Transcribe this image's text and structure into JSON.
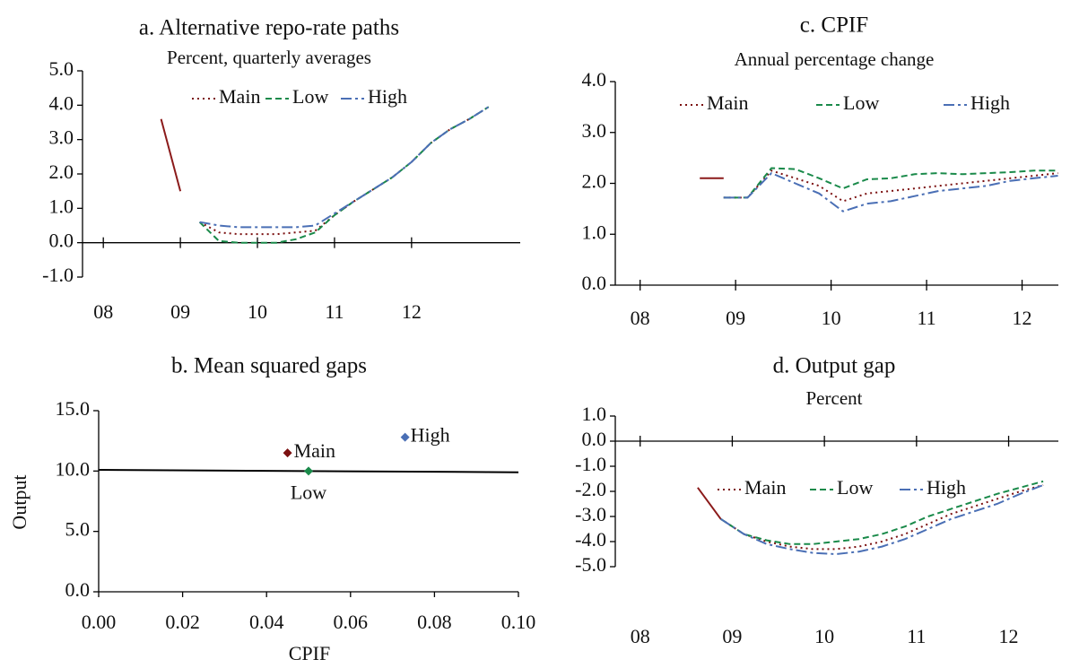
{
  "chart_data": [
    {
      "type": "line",
      "title": "a. Alternative repo-rate paths",
      "subtitle": "Percent, quarterly averages",
      "x": [
        8.75,
        9,
        9.25,
        9.5,
        9.75,
        10,
        10.25,
        10.5,
        10.75,
        11,
        11.25,
        11.5,
        11.75,
        12,
        12.25,
        12.5,
        12.75,
        13
      ],
      "xlim": [
        7.73,
        13.41
      ],
      "xticks": [
        {
          "value": 8,
          "label": "08"
        },
        {
          "value": 9,
          "label": "09"
        },
        {
          "value": 10,
          "label": "10"
        },
        {
          "value": 11,
          "label": "11"
        },
        {
          "value": 12,
          "label": "12"
        }
      ],
      "ylim": [
        -1,
        5
      ],
      "yticks": [
        {
          "value": -1,
          "label": "-1.0"
        },
        {
          "value": 0,
          "label": "0.0"
        },
        {
          "value": 1,
          "label": "1.0"
        },
        {
          "value": 2,
          "label": "2.0"
        },
        {
          "value": 3,
          "label": "3.0"
        },
        {
          "value": 4,
          "label": "4.0"
        },
        {
          "value": 5,
          "label": "5.0"
        }
      ],
      "series": [
        {
          "color": "#8b1a1a",
          "style": "solid",
          "values": [
            3.6,
            1.5,
            null,
            null,
            null,
            null,
            null,
            null,
            null,
            null,
            null,
            null,
            null,
            null,
            null,
            null,
            null,
            null
          ]
        },
        {
          "name": "Main",
          "color": "#7b1010",
          "style": "dotted",
          "values": [
            null,
            null,
            0.6,
            0.3,
            0.25,
            0.25,
            0.25,
            0.3,
            0.35,
            0.8,
            1.2,
            1.55,
            1.9,
            2.35,
            2.9,
            3.3,
            3.6,
            3.95
          ]
        },
        {
          "name": "Low",
          "color": "#1a8a4a",
          "style": "dashed",
          "values": [
            null,
            null,
            0.6,
            0.05,
            0,
            0,
            0,
            0.1,
            0.3,
            0.8,
            1.2,
            1.55,
            1.9,
            2.35,
            2.9,
            3.3,
            3.6,
            3.95
          ]
        },
        {
          "name": "High",
          "color": "#4a6fb5",
          "style": "dashdot",
          "values": [
            null,
            null,
            0.6,
            0.5,
            0.45,
            0.45,
            0.45,
            0.45,
            0.5,
            0.85,
            1.2,
            1.55,
            1.9,
            2.35,
            2.9,
            3.3,
            3.6,
            3.95
          ]
        }
      ]
    },
    {
      "type": "scatter",
      "title": "b. Mean squared gaps",
      "xlabel": "CPIF",
      "ylabel": "Output",
      "xlim": [
        0,
        0.1
      ],
      "xticks": [
        {
          "value": 0,
          "label": "0.00"
        },
        {
          "value": 0.02,
          "label": "0.02"
        },
        {
          "value": 0.04,
          "label": "0.04"
        },
        {
          "value": 0.06,
          "label": "0.06"
        },
        {
          "value": 0.08,
          "label": "0.08"
        },
        {
          "value": 0.1,
          "label": "0.10"
        }
      ],
      "ylim": [
        0,
        15
      ],
      "yticks": [
        {
          "value": 0,
          "label": "0.0"
        },
        {
          "value": 5,
          "label": "5.0"
        },
        {
          "value": 10,
          "label": "10.0"
        },
        {
          "value": 15,
          "label": "15.0"
        }
      ],
      "points": [
        {
          "name": "Main",
          "x": 0.045,
          "y": 11.5,
          "color": "#7b1010"
        },
        {
          "name": "Low",
          "x": 0.05,
          "y": 10.0,
          "color": "#1a8a4a"
        },
        {
          "name": "High",
          "x": 0.073,
          "y": 12.8,
          "color": "#4a6fb5"
        }
      ],
      "line": {
        "x": [
          0,
          0.1
        ],
        "values": [
          10.1,
          9.9
        ],
        "color": "#000000"
      }
    },
    {
      "type": "line",
      "title": "c. CPIF",
      "subtitle": "Annual percentage change",
      "x": [
        8.625,
        8.875,
        9.125,
        9.375,
        9.625,
        9.875,
        10.125,
        10.375,
        10.625,
        10.875,
        11.125,
        11.375,
        11.625,
        11.875,
        12.125,
        12.375
      ],
      "xlim": [
        7.74,
        12.38
      ],
      "xticks": [
        {
          "value": 8,
          "label": "08"
        },
        {
          "value": 9,
          "label": "09"
        },
        {
          "value": 10,
          "label": "10"
        },
        {
          "value": 11,
          "label": "11"
        },
        {
          "value": 12,
          "label": "12"
        }
      ],
      "ylim": [
        0,
        4
      ],
      "yticks": [
        {
          "value": 0,
          "label": "0.0"
        },
        {
          "value": 1,
          "label": "1.0"
        },
        {
          "value": 2,
          "label": "2.0"
        },
        {
          "value": 3,
          "label": "3.0"
        },
        {
          "value": 4,
          "label": "4.0"
        }
      ],
      "series": [
        {
          "color": "#8b1a1a",
          "style": "solid",
          "values": [
            2.1,
            2.1,
            null,
            null,
            null,
            null,
            null,
            null,
            null,
            null,
            null,
            null,
            null,
            null,
            null,
            null
          ]
        },
        {
          "name": "Main",
          "color": "#7b1010",
          "style": "dotted",
          "values": [
            null,
            1.72,
            1.72,
            2.25,
            2.1,
            1.95,
            1.65,
            1.8,
            1.85,
            1.9,
            1.95,
            2.0,
            2.05,
            2.1,
            2.15,
            2.2
          ]
        },
        {
          "name": "Low",
          "color": "#1a8a4a",
          "style": "dashed",
          "values": [
            null,
            1.72,
            1.72,
            2.3,
            2.28,
            2.1,
            1.9,
            2.08,
            2.1,
            2.18,
            2.2,
            2.18,
            2.2,
            2.22,
            2.25,
            2.25
          ]
        },
        {
          "name": "High",
          "color": "#4a6fb5",
          "style": "dashdot",
          "values": [
            null,
            1.72,
            1.72,
            2.2,
            2.0,
            1.8,
            1.45,
            1.6,
            1.65,
            1.75,
            1.85,
            1.9,
            1.95,
            2.05,
            2.1,
            2.15
          ]
        }
      ]
    },
    {
      "type": "line",
      "title": "d. Output gap",
      "subtitle": "Percent",
      "x": [
        8.625,
        8.875,
        9.125,
        9.375,
        9.625,
        9.875,
        10.125,
        10.375,
        10.625,
        10.875,
        11.125,
        11.375,
        11.625,
        11.875,
        12.125,
        12.375
      ],
      "xlim": [
        7.73,
        12.54
      ],
      "xticks": [
        {
          "value": 8,
          "label": "08"
        },
        {
          "value": 9,
          "label": "09"
        },
        {
          "value": 10,
          "label": "10"
        },
        {
          "value": 11,
          "label": "11"
        },
        {
          "value": 12,
          "label": "12"
        }
      ],
      "ylim": [
        -5,
        1
      ],
      "yticks": [
        {
          "value": -5,
          "label": "-5.0"
        },
        {
          "value": -4,
          "label": "-4.0"
        },
        {
          "value": -3,
          "label": "-3.0"
        },
        {
          "value": -2,
          "label": "-2.0"
        },
        {
          "value": -1,
          "label": "-1.0"
        },
        {
          "value": 0,
          "label": "0.0"
        },
        {
          "value": 1,
          "label": "1.0"
        }
      ],
      "series": [
        {
          "color": "#8b1a1a",
          "style": "solid",
          "values": [
            -1.85,
            -3.1,
            null,
            null,
            null,
            null,
            null,
            null,
            null,
            null,
            null,
            null,
            null,
            null,
            null,
            null
          ]
        },
        {
          "name": "Main",
          "color": "#7b1010",
          "style": "dotted",
          "values": [
            null,
            -3.1,
            -3.7,
            -4.0,
            -4.2,
            -4.3,
            -4.3,
            -4.2,
            -4.0,
            -3.7,
            -3.3,
            -2.9,
            -2.6,
            -2.3,
            -2.0,
            -1.75
          ]
        },
        {
          "name": "Low",
          "color": "#1a8a4a",
          "style": "dashed",
          "values": [
            null,
            -3.1,
            -3.7,
            -3.95,
            -4.1,
            -4.1,
            -4.0,
            -3.9,
            -3.7,
            -3.4,
            -3.0,
            -2.7,
            -2.4,
            -2.1,
            -1.85,
            -1.6
          ]
        },
        {
          "name": "High",
          "color": "#4a6fb5",
          "style": "dashdot",
          "values": [
            null,
            -3.1,
            -3.7,
            -4.1,
            -4.3,
            -4.45,
            -4.5,
            -4.4,
            -4.2,
            -3.9,
            -3.5,
            -3.1,
            -2.8,
            -2.5,
            -2.1,
            -1.75
          ]
        }
      ]
    }
  ]
}
